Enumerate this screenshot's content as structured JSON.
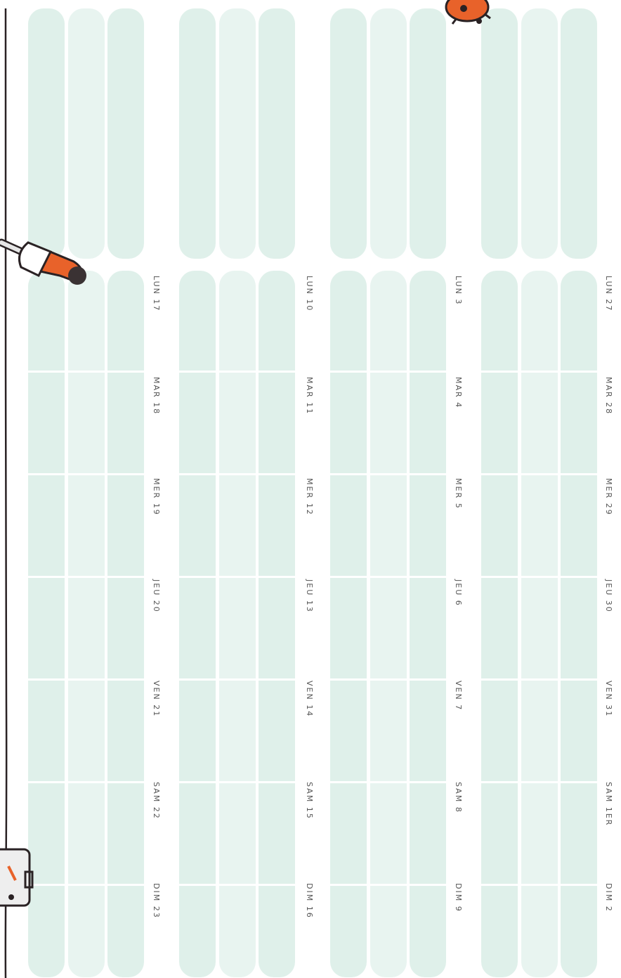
{
  "weeks": [
    {
      "days": [
        "LUN 17",
        "MAR 18",
        "MER 19",
        "JEU 20",
        "VEN 21",
        "SAM 22",
        "DIM 23"
      ]
    },
    {
      "days": [
        "LUN 10",
        "MAR 11",
        "MER 12",
        "JEU 13",
        "VEN 14",
        "SAM 15",
        "DIM 16"
      ]
    },
    {
      "days": [
        "LUN 3",
        "MAR 4",
        "MER 5",
        "JEU 6",
        "VEN 7",
        "SAM 8",
        "DIM 9"
      ]
    },
    {
      "days": [
        "LUN 27",
        "MAR 28",
        "MER 29",
        "JEU 30",
        "VEN 31",
        "SAM 1ER",
        "DIM 2"
      ]
    }
  ]
}
